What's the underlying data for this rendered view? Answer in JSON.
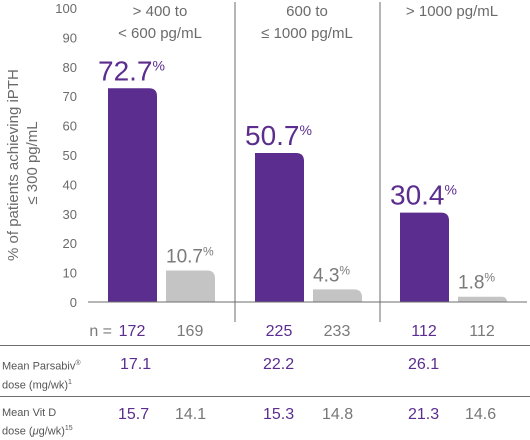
{
  "chart_data": {
    "type": "bar",
    "ylabel_line1": "% of patients achieving iPTH",
    "ylabel_line2": "≤ 300 pg/mL",
    "yticks": [
      0,
      10,
      20,
      30,
      40,
      50,
      60,
      70,
      80,
      90,
      100
    ],
    "ylim": [
      0,
      100
    ],
    "groups": [
      {
        "label_line1": "> 400 to",
        "label_line2": "< 600 pg/mL"
      },
      {
        "label_line1": "600 to",
        "label_line2": "≤ 1000 pg/mL"
      },
      {
        "label_line1": "> 1000 pg/mL",
        "label_line2": ""
      }
    ],
    "series": [
      {
        "values": [
          72.7,
          50.7,
          30.4
        ],
        "labels": [
          "72.7",
          "50.7",
          "30.4"
        ],
        "color": "#5b2d8e"
      },
      {
        "values": [
          10.7,
          4.3,
          1.8
        ],
        "labels": [
          "10.7",
          "4.3",
          "1.8"
        ],
        "color": "#c4c4c4"
      }
    ],
    "percent_sign": "%",
    "grid": false
  },
  "n_row": {
    "prefix": "n = ",
    "values": [
      "172",
      "169",
      "225",
      "233",
      "112",
      "112"
    ]
  },
  "table": {
    "row1": {
      "label_line1": "Mean Parsabiv",
      "label_mark": "®",
      "label_line2": "dose (mg/wk)",
      "label_sup": "1",
      "values": [
        "17.1",
        "22.2",
        "26.1"
      ]
    },
    "row2": {
      "label_line1": "Mean Vit D",
      "label_line2_a": "dose (",
      "label_mu": "μ",
      "label_line2_b": "g/wk)",
      "label_sup": "15",
      "values": [
        "15.7",
        "14.1",
        "15.3",
        "14.8",
        "21.3",
        "14.6"
      ]
    }
  },
  "colors": {
    "purple": "#5b2d8e",
    "gray": "#c4c4c4",
    "text": "#6b6b6b",
    "axis": "#6e6e6e"
  }
}
